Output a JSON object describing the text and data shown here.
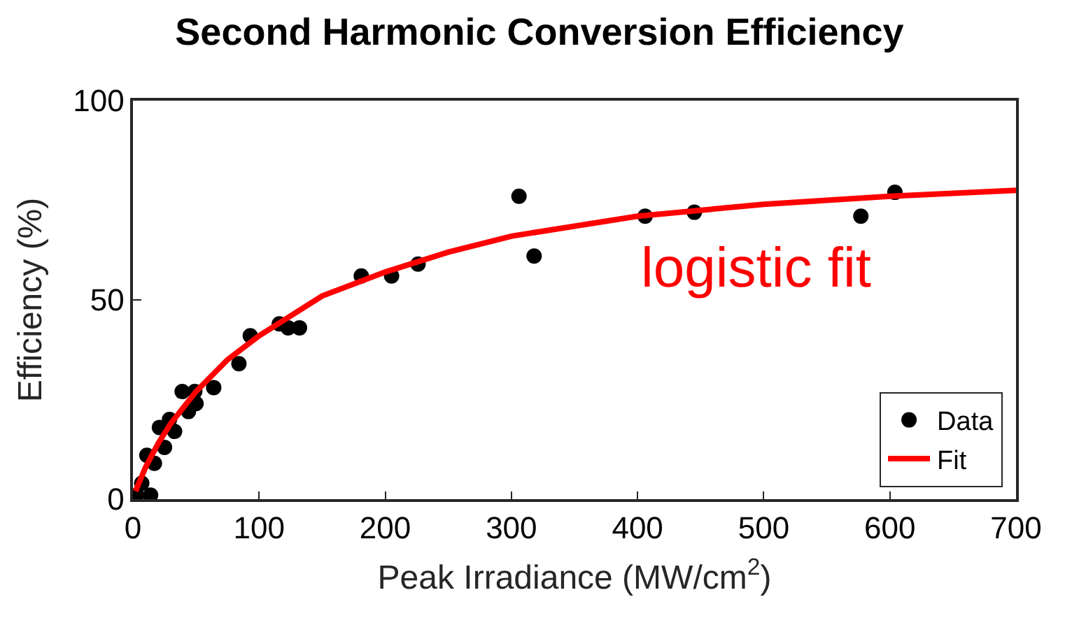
{
  "chart_data": {
    "type": "scatter",
    "title": "Second Harmonic Conversion Efficiency",
    "xlabel": "Peak Irradiance (MW/cm$^{2}$)",
    "ylabel": "Efficiency (%)",
    "xlim": [
      0,
      700
    ],
    "xticks": [
      0,
      100,
      200,
      300,
      400,
      500,
      600,
      700
    ],
    "ylim": [
      0,
      100
    ],
    "yticks": [
      0,
      50,
      100
    ],
    "legend": "bottom right",
    "annotations": [
      "logistic fit"
    ],
    "series": [
      {
        "name": "Data",
        "type": "scatter",
        "marker": "circle",
        "color": "#000000",
        "x": [
          3,
          7,
          11,
          14,
          17,
          21,
          25,
          29,
          33,
          39,
          44,
          49,
          50,
          64,
          84,
          93,
          116,
          123,
          132,
          181,
          205,
          226,
          306,
          318,
          406,
          445,
          577,
          604
        ],
        "values": [
          1,
          4,
          11,
          1,
          9,
          18,
          13,
          20,
          17,
          27,
          22,
          27,
          24,
          28,
          34,
          41,
          44,
          43,
          43,
          56,
          56,
          59,
          76,
          61,
          71,
          72,
          71,
          77
        ]
      },
      {
        "name": "Fit",
        "type": "line",
        "color": "#ff0000",
        "line_style": "solid",
        "x": [
          2,
          10,
          20,
          30,
          50,
          75,
          100,
          125,
          150,
          200,
          250,
          300,
          400,
          500,
          600,
          700
        ],
        "values": [
          2,
          8,
          14,
          19,
          27,
          35,
          41,
          46,
          51,
          57,
          62,
          66,
          71,
          74,
          76,
          77.5
        ]
      }
    ]
  }
}
